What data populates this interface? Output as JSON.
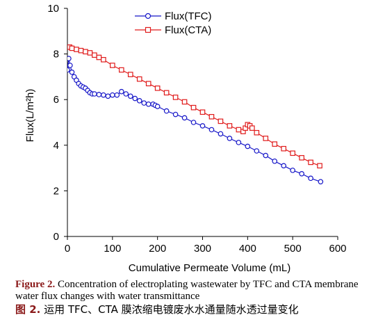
{
  "chart_data": {
    "type": "line",
    "xlabel": "Cumulative Permeate Volume (mL)",
    "ylabel": "Flux(L/m²h)",
    "xlim": [
      0,
      600
    ],
    "ylim": [
      0,
      10
    ],
    "xticks": [
      "0",
      "100",
      "200",
      "300",
      "400",
      "500",
      "600"
    ],
    "yticks": [
      "0",
      "2",
      "4",
      "6",
      "8",
      "10"
    ],
    "grid": false,
    "legend_position": "top-center",
    "series": [
      {
        "name": "Flux(TFC)",
        "marker": "circle",
        "color": "#1515c8",
        "x": [
          0,
          3,
          6,
          10,
          15,
          20,
          25,
          30,
          35,
          40,
          45,
          50,
          55,
          60,
          70,
          80,
          90,
          100,
          110,
          120,
          130,
          140,
          150,
          160,
          170,
          180,
          190,
          195,
          200,
          220,
          240,
          260,
          280,
          300,
          320,
          340,
          360,
          380,
          400,
          420,
          440,
          460,
          480,
          500,
          520,
          540,
          562
        ],
        "y": [
          7.3,
          7.8,
          7.5,
          7.2,
          7.0,
          6.85,
          6.7,
          6.6,
          6.55,
          6.5,
          6.4,
          6.3,
          6.25,
          6.25,
          6.22,
          6.2,
          6.15,
          6.2,
          6.2,
          6.35,
          6.25,
          6.15,
          6.05,
          5.95,
          5.85,
          5.8,
          5.8,
          5.75,
          5.7,
          5.5,
          5.35,
          5.2,
          5.0,
          4.85,
          4.68,
          4.5,
          4.3,
          4.12,
          3.95,
          3.75,
          3.55,
          3.3,
          3.1,
          2.9,
          2.75,
          2.55,
          2.4
        ]
      },
      {
        "name": "Flux(CTA)",
        "marker": "square",
        "color": "#e01b1b",
        "x": [
          0,
          5,
          10,
          20,
          30,
          40,
          50,
          60,
          70,
          80,
          100,
          120,
          140,
          160,
          180,
          200,
          220,
          240,
          260,
          280,
          300,
          320,
          340,
          360,
          380,
          390,
          395,
          400,
          405,
          410,
          420,
          440,
          460,
          480,
          500,
          520,
          540,
          560
        ],
        "y": [
          8.3,
          8.3,
          8.25,
          8.2,
          8.15,
          8.1,
          8.05,
          7.95,
          7.85,
          7.75,
          7.5,
          7.3,
          7.1,
          6.9,
          6.7,
          6.5,
          6.3,
          6.1,
          5.9,
          5.65,
          5.45,
          5.25,
          5.05,
          4.85,
          4.68,
          4.6,
          4.75,
          4.9,
          4.85,
          4.75,
          4.55,
          4.3,
          4.05,
          3.85,
          3.65,
          3.45,
          3.25,
          3.1
        ]
      }
    ]
  },
  "caption": {
    "en_label": "Figure 2.",
    "en_text": " Concentration of electroplating wastewater by TFC and CTA membrane water flux changes with water transmittance",
    "zh_label": "图 2.",
    "zh_text": " 运用 TFC、CTA 膜浓缩电镀废水水通量随水透过量变化"
  }
}
